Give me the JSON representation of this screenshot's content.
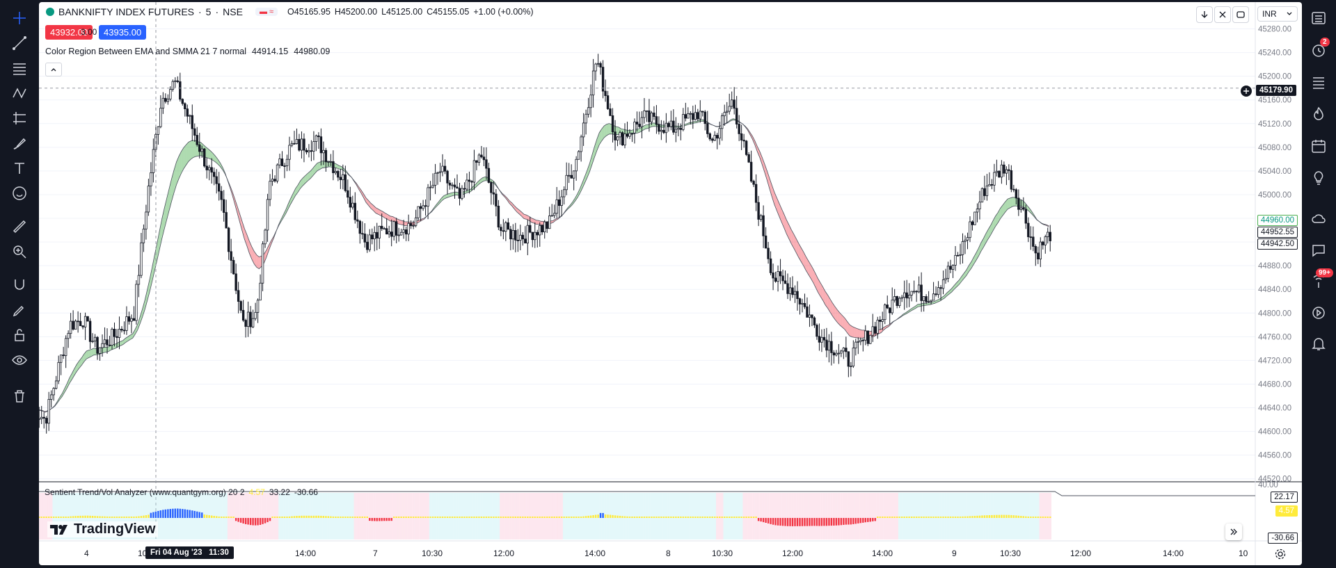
{
  "symbol": {
    "name": "BANKNIFTY INDEX FUTURES",
    "interval": "5",
    "exchange": "NSE",
    "open": "O45165.95",
    "high": "H45200.00",
    "low": "L45125.00",
    "close": "C45155.05",
    "change": "+1.00 (+0.00%)",
    "sell_price": "43932.00",
    "spread": "3.00",
    "buy_price": "43935.00"
  },
  "indicator_main": {
    "name": "Color Region Between EMA and SMMA 21 7 normal",
    "value1": "44914.15",
    "value2": "44980.09"
  },
  "indicator_sub": {
    "name": "Sentient Trend/Vol Analyzer (www.quantgym.org) 20 2",
    "value1": "4.57",
    "value2": "33.22",
    "value3": "-30.66"
  },
  "currency": "INR",
  "crosshair": {
    "price": "45179.90",
    "time": "Fri 04 Aug '23   11:30"
  },
  "price_labels": [
    "44960.00",
    "44952.55",
    "44942.50"
  ],
  "sub_labels": [
    "22.17",
    "4.57",
    "-30.66"
  ],
  "sub_axis_top": "40.00",
  "price_axis": [
    "45280.00",
    "45240.00",
    "45200.00",
    "45160.00",
    "45120.00",
    "45080.00",
    "45040.00",
    "45000.00",
    "44960.00",
    "44920.00",
    "44880.00",
    "44840.00",
    "44800.00",
    "44760.00",
    "44720.00",
    "44680.00",
    "44640.00",
    "44600.00",
    "44560.00",
    "44520.00"
  ],
  "time_axis": [
    "4",
    "10",
    "14:00",
    "7",
    "10:30",
    "12:00",
    "14:00",
    "8",
    "10:30",
    "12:00",
    "14:00",
    "9",
    "10:30",
    "12:00",
    "14:00",
    "10"
  ],
  "brand": "TradingView",
  "notifications": {
    "alerts": "2",
    "messages": "99+"
  },
  "colors": {
    "bull": "#131722",
    "bear": "#131722",
    "region_up": "#4caf50",
    "region_down": "#f23645",
    "hist_red": "#f23645",
    "hist_blue": "#2962ff",
    "hist_yellow": "#ffeb3b"
  }
}
